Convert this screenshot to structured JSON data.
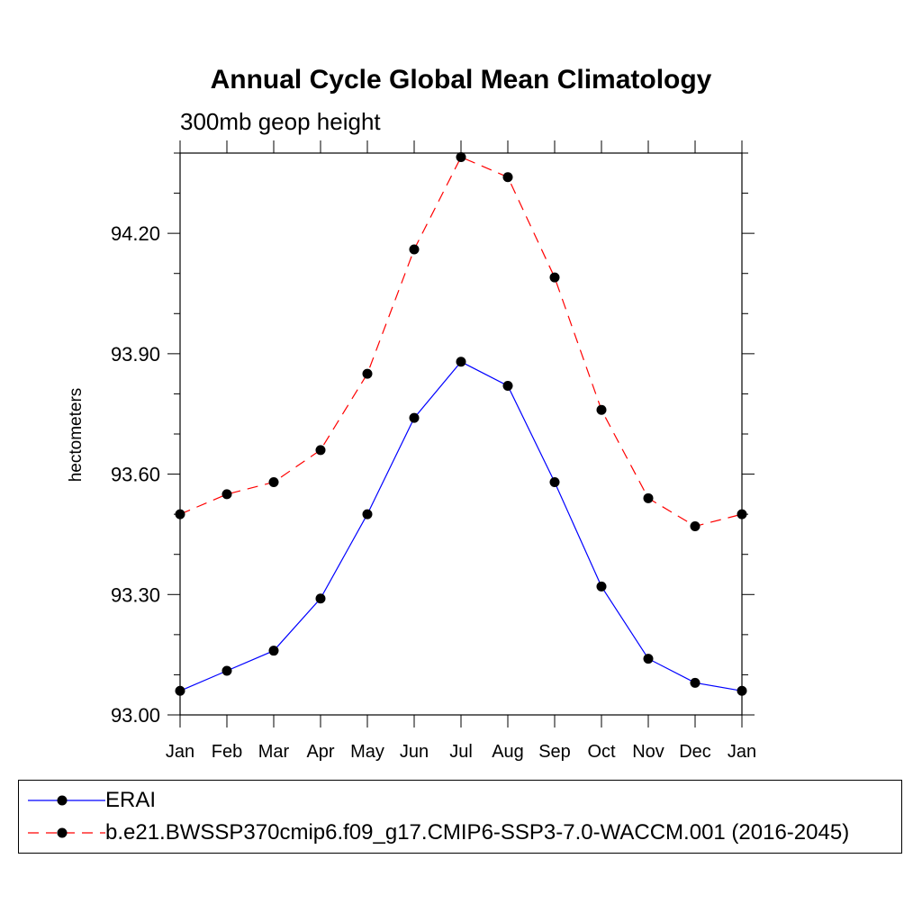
{
  "chart_data": {
    "type": "line",
    "title": "Annual Cycle Global Mean Climatology",
    "subtitle": "300mb geop height",
    "xlabel": "",
    "ylabel": "hectometers",
    "categories": [
      "Jan",
      "Feb",
      "Mar",
      "Apr",
      "May",
      "Jun",
      "Jul",
      "Aug",
      "Sep",
      "Oct",
      "Nov",
      "Dec",
      "Jan"
    ],
    "ylim": [
      93.0,
      94.4
    ],
    "yticks": [
      "93.00",
      "93.30",
      "93.60",
      "93.90",
      "94.20"
    ],
    "ytick_values": [
      93.0,
      93.3,
      93.6,
      93.9,
      94.2
    ],
    "series": [
      {
        "name": "ERAI",
        "color": "#0000ff",
        "dash": "solid",
        "values": [
          93.06,
          93.11,
          93.16,
          93.29,
          93.5,
          93.74,
          93.88,
          93.82,
          93.58,
          93.32,
          93.14,
          93.08,
          93.06
        ]
      },
      {
        "name": "b.e21.BWSSP370cmip6.f09_g17.CMIP6-SSP3-7.0-WACCM.001 (2016-2045)",
        "color": "#ff0000",
        "dash": "dashed",
        "values": [
          93.5,
          93.55,
          93.58,
          93.66,
          93.85,
          94.16,
          94.39,
          94.34,
          94.09,
          93.76,
          93.54,
          93.47,
          93.5
        ]
      }
    ],
    "grid": false,
    "legend_position": "bottom"
  }
}
